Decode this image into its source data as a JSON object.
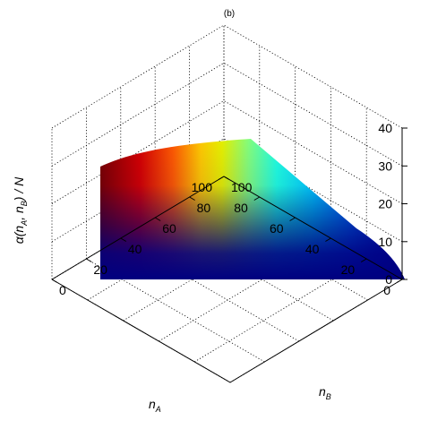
{
  "chart_data": {
    "type": "surface",
    "title": "(b)",
    "xlabel": {
      "base": "n",
      "sub": "A"
    },
    "ylabel": {
      "base": "n",
      "sub": "B"
    },
    "zlabel": {
      "pre": "α(n",
      "sub1": "A",
      "mid": ", n",
      "sub2": "B",
      "post": ") / N"
    },
    "xlim": [
      0,
      100
    ],
    "ylim": [
      0,
      100
    ],
    "zlim": [
      0,
      40
    ],
    "x_ticks": [
      0,
      20,
      40,
      60,
      80,
      100
    ],
    "y_ticks": [
      0,
      20,
      40,
      60,
      80,
      100
    ],
    "z_ticks": [
      0,
      10,
      20,
      30,
      40
    ],
    "grid": true,
    "colormap": "jet",
    "domain": "n_A + n_B <= 100",
    "surface_samples": [
      {
        "n_A": 100,
        "n_B": 0,
        "value": 31
      },
      {
        "n_A": 80,
        "n_B": 0,
        "value": 33
      },
      {
        "n_A": 60,
        "n_B": 0,
        "value": 35
      },
      {
        "n_A": 40,
        "n_B": 0,
        "value": 37
      },
      {
        "n_A": 20,
        "n_B": 0,
        "value": 38.5
      },
      {
        "n_A": 0,
        "n_B": 0,
        "value": 39
      },
      {
        "n_A": 0,
        "n_B": 20,
        "value": 31
      },
      {
        "n_A": 0,
        "n_B": 50,
        "value": 19
      },
      {
        "n_A": 0,
        "n_B": 80,
        "value": 8
      },
      {
        "n_A": 0,
        "n_B": 100,
        "value": 1
      }
    ]
  }
}
